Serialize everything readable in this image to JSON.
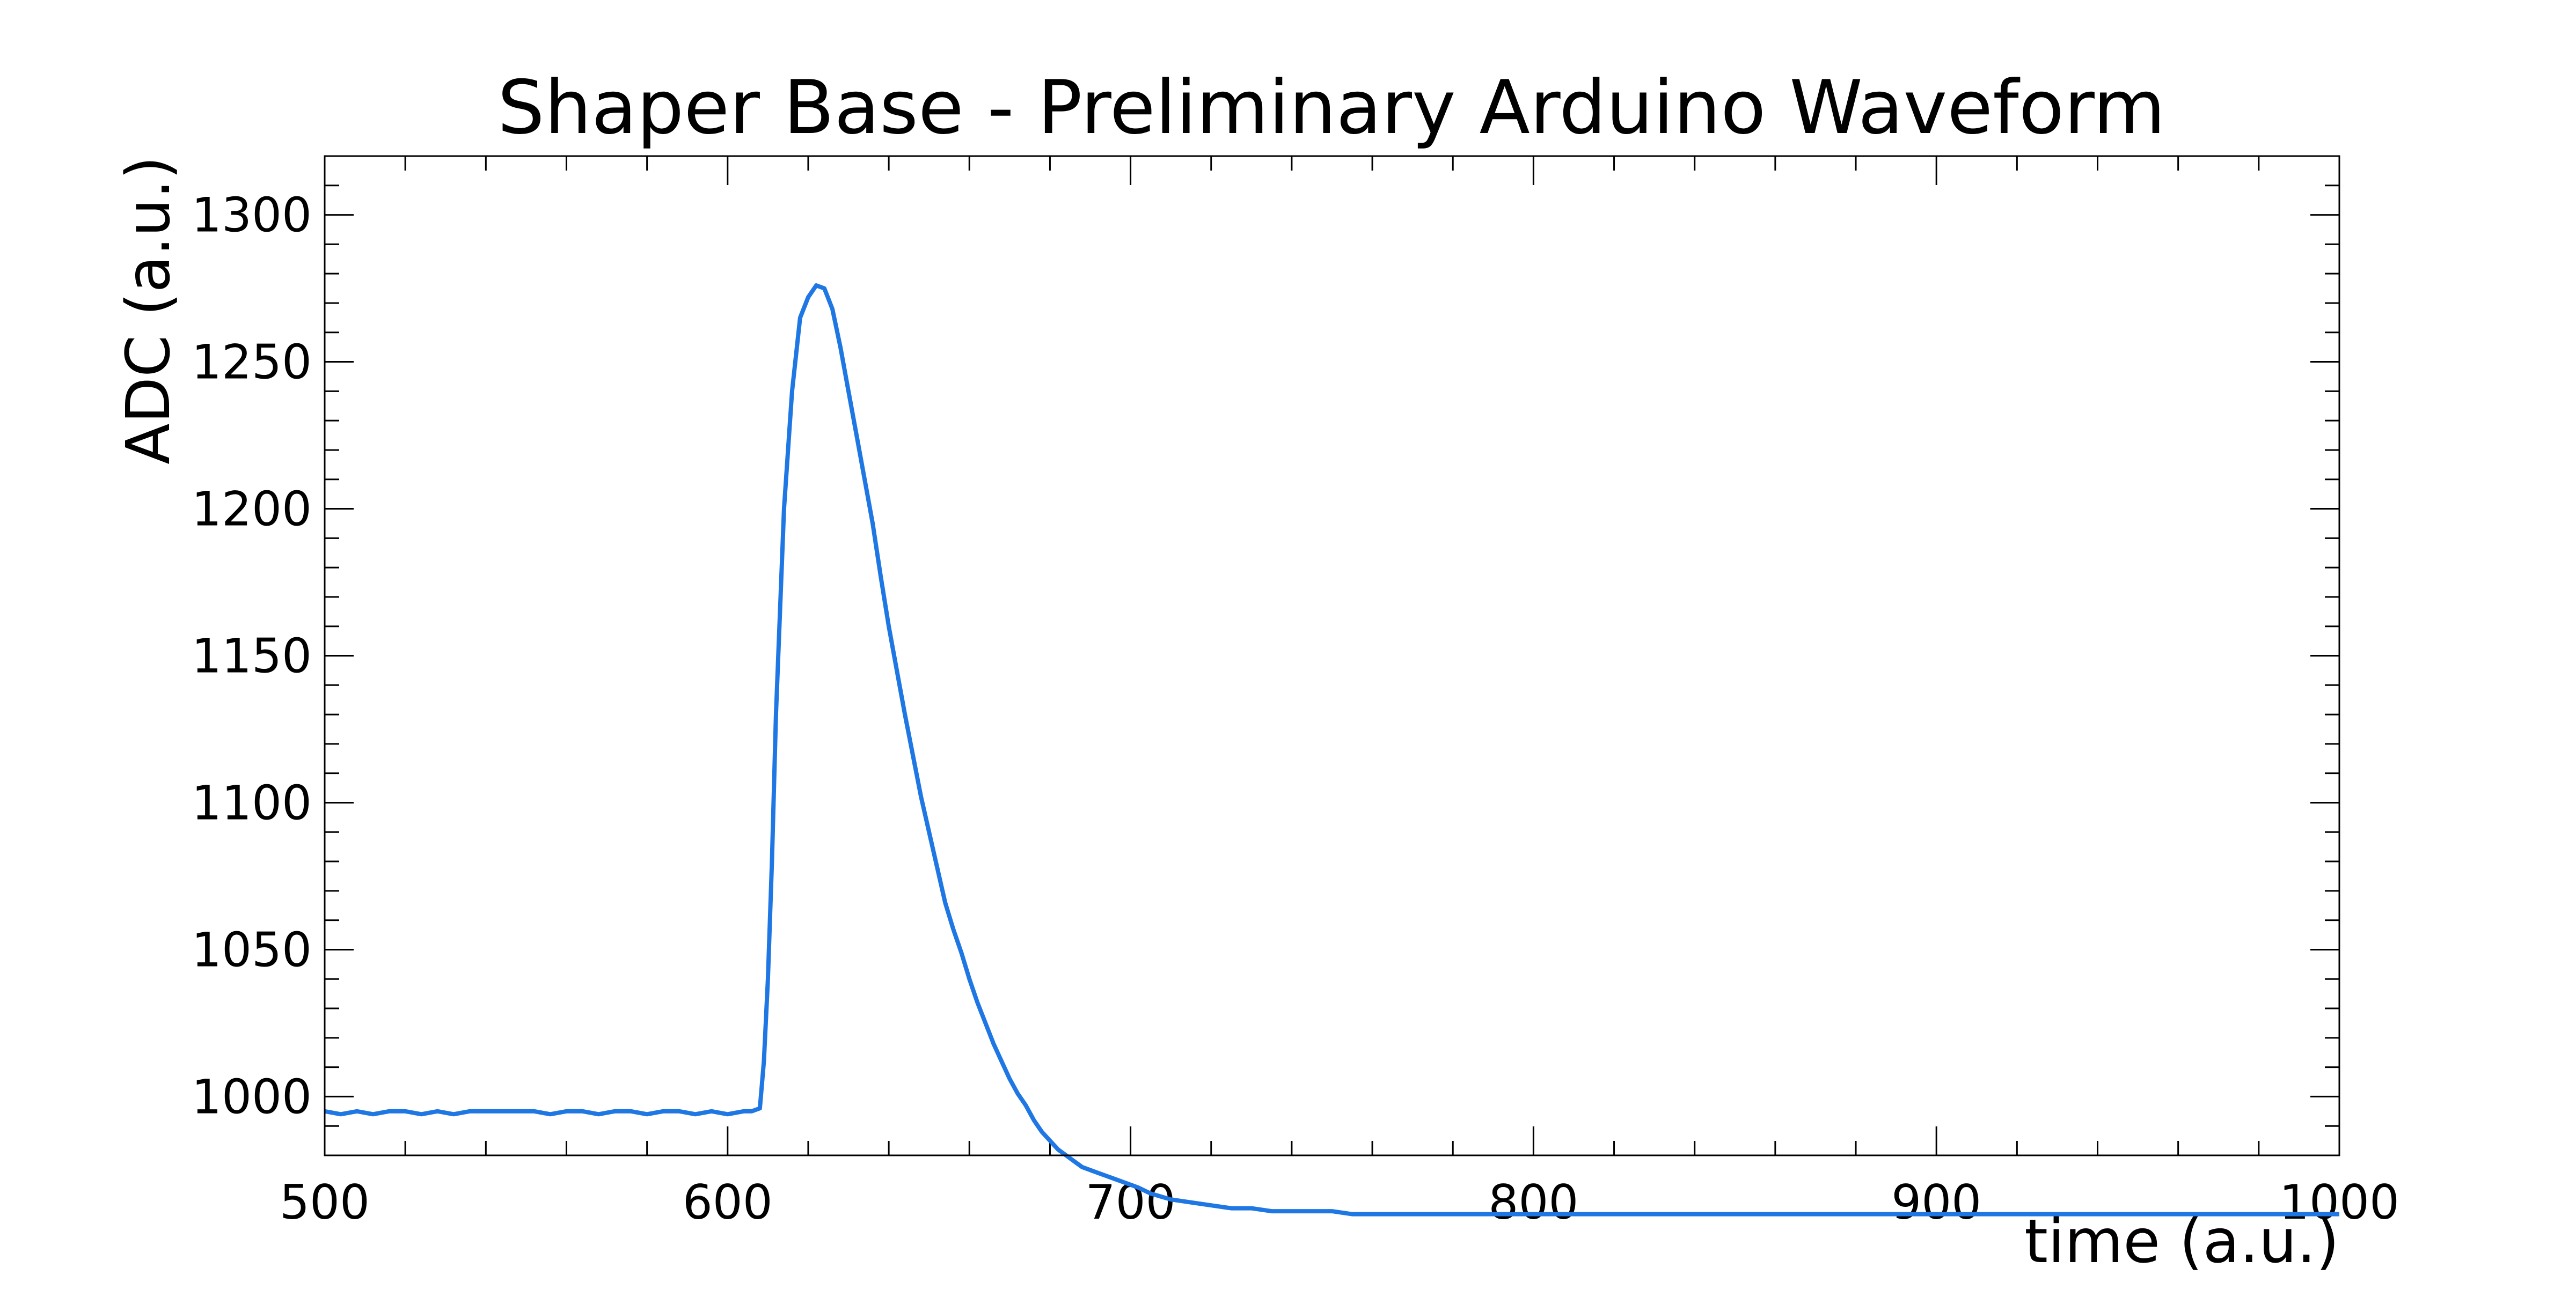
{
  "chart_data": {
    "type": "line",
    "title": "Shaper Base - Preliminary Arduino Waveform",
    "xlabel": "time (a.u.)",
    "ylabel": "ADC (a.u.)",
    "xlim": [
      500,
      1000
    ],
    "ylim": [
      980,
      1320
    ],
    "xticks": [
      500,
      600,
      700,
      800,
      900,
      1000
    ],
    "xtick_labels": [
      "500",
      "600",
      "700",
      "800",
      "900",
      "1000"
    ],
    "yticks": [
      1000,
      1050,
      1100,
      1150,
      1200,
      1250,
      1300
    ],
    "ytick_labels": [
      "1000",
      "1050",
      "1100",
      "1150",
      "1200",
      "1250",
      "1300"
    ],
    "grid": false,
    "series": [
      {
        "color": "#1f77e4",
        "x": [
          500,
          504,
          508,
          512,
          516,
          520,
          524,
          528,
          532,
          536,
          540,
          544,
          548,
          552,
          556,
          560,
          564,
          568,
          572,
          576,
          580,
          584,
          588,
          592,
          596,
          600,
          604,
          606,
          608,
          609,
          610,
          611,
          612,
          614,
          616,
          618,
          620,
          622,
          624,
          626,
          628,
          630,
          632,
          634,
          636,
          638,
          640,
          642,
          644,
          646,
          648,
          650,
          652,
          654,
          656,
          658,
          660,
          662,
          664,
          666,
          668,
          670,
          672,
          674,
          676,
          678,
          680,
          682,
          684,
          686,
          688,
          690,
          692,
          694,
          696,
          698,
          700,
          702,
          705,
          710,
          715,
          720,
          725,
          730,
          735,
          740,
          745,
          750,
          755,
          760,
          770,
          780,
          790,
          800,
          810,
          820,
          830,
          840,
          850,
          860,
          870,
          880,
          890,
          900,
          910,
          920,
          930,
          940,
          950,
          960,
          970,
          980,
          990,
          1000
        ],
        "y": [
          995,
          994,
          995,
          994,
          995,
          995,
          994,
          995,
          994,
          995,
          995,
          995,
          995,
          995,
          994,
          995,
          995,
          994,
          995,
          995,
          994,
          995,
          995,
          994,
          995,
          994,
          995,
          995,
          996,
          1012,
          1040,
          1080,
          1130,
          1200,
          1240,
          1265,
          1272,
          1276,
          1275,
          1268,
          1255,
          1240,
          1225,
          1210,
          1195,
          1177,
          1160,
          1145,
          1130,
          1116,
          1102,
          1090,
          1078,
          1066,
          1057,
          1049,
          1040,
          1032,
          1025,
          1018,
          1012,
          1006,
          1001,
          997,
          992,
          988,
          985,
          982,
          980,
          978,
          976,
          975,
          974,
          973,
          972,
          971,
          970,
          969,
          967,
          965,
          964,
          963,
          962,
          962,
          961,
          961,
          961,
          961,
          960,
          960,
          960,
          960,
          960,
          960,
          960,
          960,
          960,
          960,
          960,
          960,
          960,
          960,
          960,
          960,
          960,
          960,
          960,
          960,
          960,
          960,
          960,
          960,
          960,
          960
        ]
      }
    ]
  }
}
